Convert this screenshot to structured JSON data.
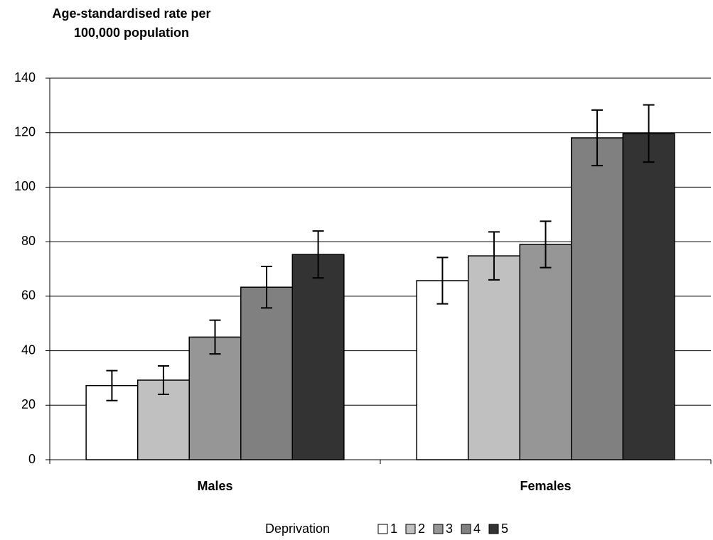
{
  "chart_data": {
    "type": "bar",
    "ylabel": "Age-standardised rate per 100,000 population",
    "categories": [
      "Males",
      "Females"
    ],
    "legend_title": "Deprivation",
    "series": [
      {
        "name": "1",
        "color": "#ffffff",
        "values": [
          27.2,
          65.7
        ],
        "errors": [
          5.5,
          8.5
        ]
      },
      {
        "name": "2",
        "color": "#c0c0c0",
        "values": [
          29.2,
          74.8
        ],
        "errors": [
          5.2,
          8.8
        ]
      },
      {
        "name": "3",
        "color": "#969696",
        "values": [
          45.0,
          79.0
        ],
        "errors": [
          6.2,
          8.5
        ]
      },
      {
        "name": "4",
        "color": "#808080",
        "values": [
          63.3,
          118.1
        ],
        "errors": [
          7.6,
          10.2
        ]
      },
      {
        "name": "5",
        "color": "#333333",
        "values": [
          75.3,
          119.7
        ],
        "errors": [
          8.6,
          10.5
        ]
      }
    ],
    "ylim": [
      0,
      140
    ],
    "yticks": [
      0,
      20,
      40,
      60,
      80,
      100,
      120,
      140
    ],
    "grid": true
  }
}
